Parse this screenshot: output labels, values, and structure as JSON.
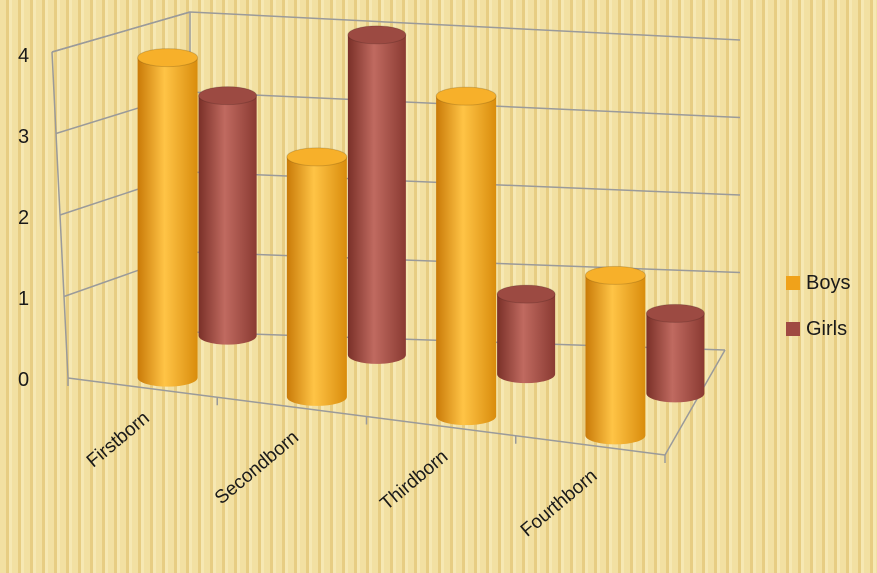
{
  "chart_data": {
    "type": "bar",
    "style": "3d-cylinder",
    "categories": [
      "Firstborn",
      "Secondborn",
      "Thirdborn",
      "Fourthborn"
    ],
    "series": [
      {
        "name": "Boys",
        "values": [
          4,
          3,
          4,
          2
        ],
        "color": "#f0a21a"
      },
      {
        "name": "Girls",
        "values": [
          3,
          4,
          1,
          1
        ],
        "color": "#a04a42"
      }
    ],
    "ylim": [
      0,
      4
    ],
    "yticks": [
      "0",
      "1",
      "2",
      "3",
      "4"
    ],
    "grid": true,
    "legend": "right"
  }
}
